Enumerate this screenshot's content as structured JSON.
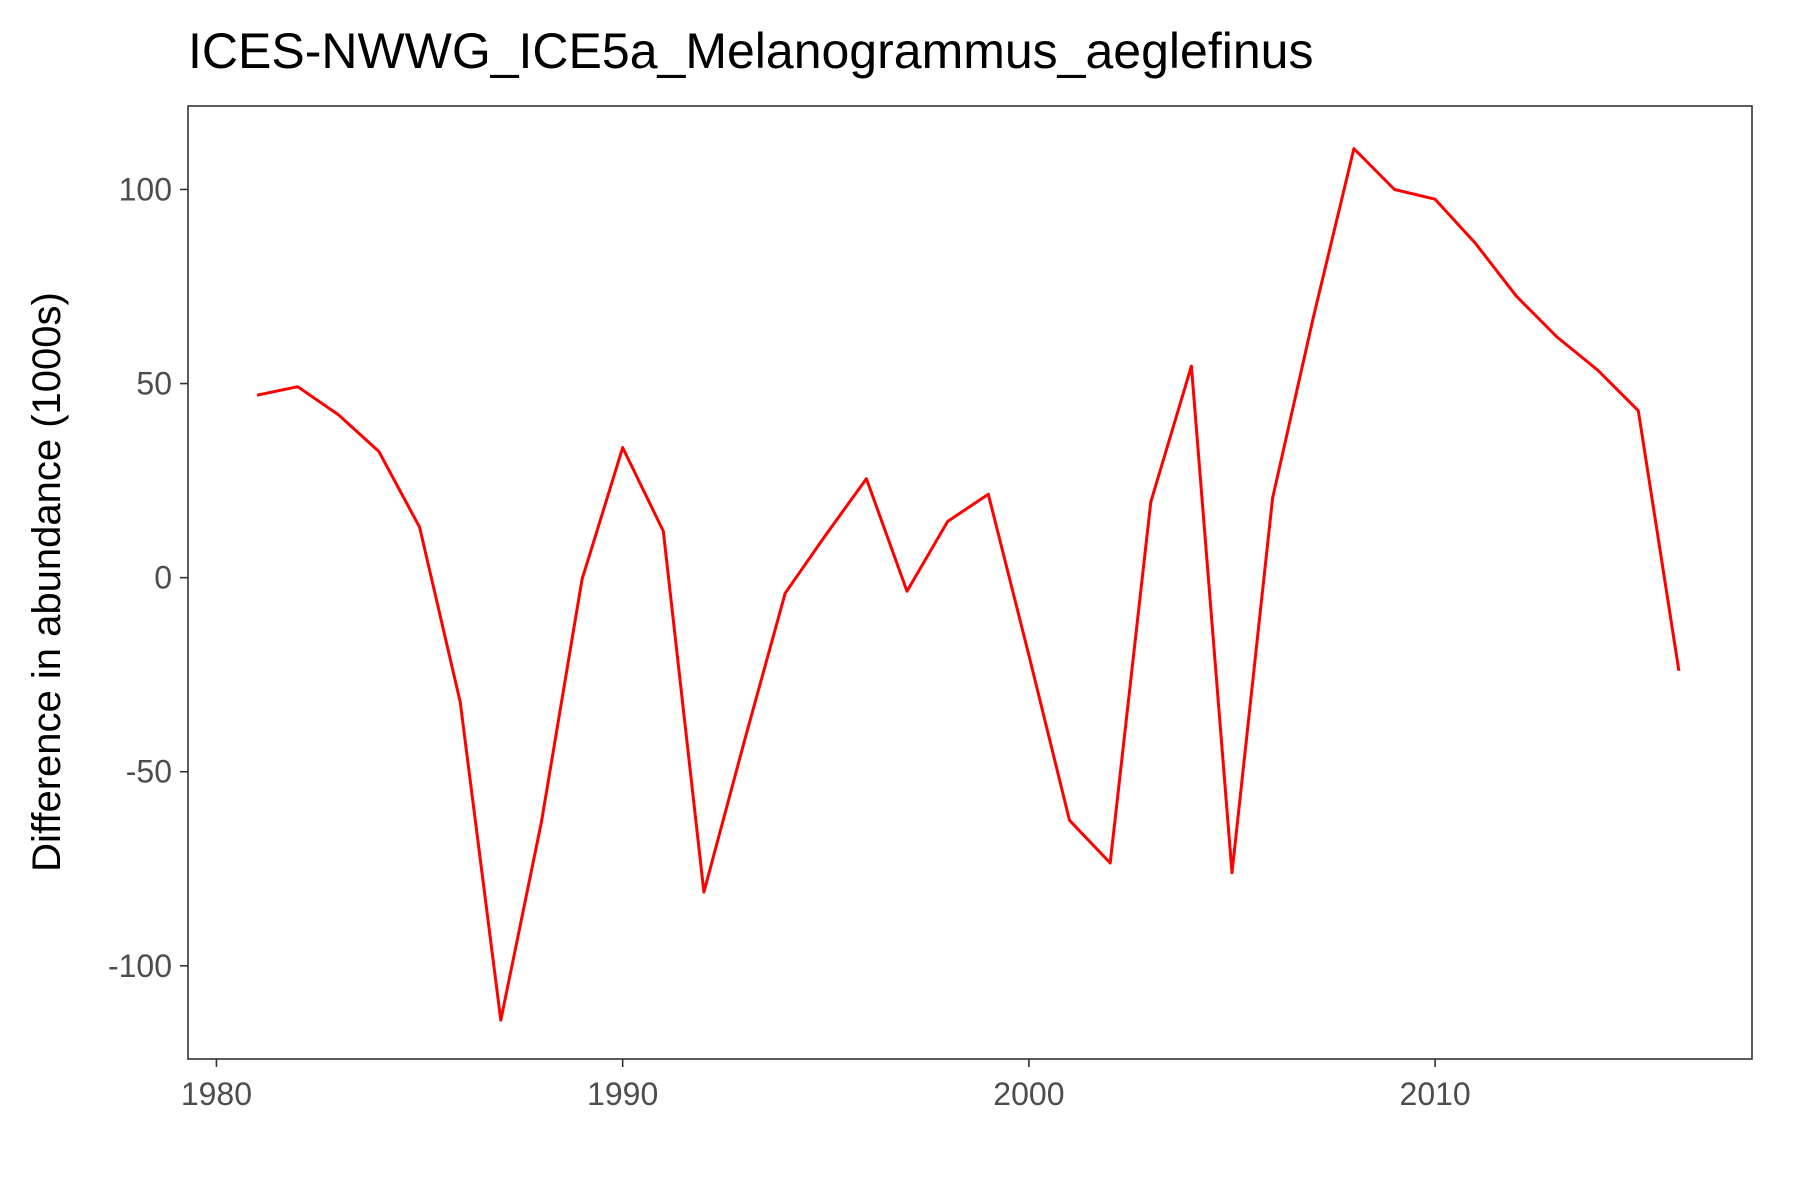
{
  "chart_data": {
    "type": "line",
    "title": "ICES-NWWG_ICE5a_Melanogrammus_aeglefinus",
    "xlabel": "",
    "ylabel": "Difference in abundance (1000s)",
    "xlim": [
      1979.3,
      2017.8
    ],
    "ylim": [
      -124,
      121.5
    ],
    "x_ticks": [
      1980,
      1990,
      2000,
      2010
    ],
    "y_ticks": [
      -100,
      -50,
      0,
      50,
      100
    ],
    "grid": false,
    "legend": "none",
    "series": [
      {
        "color": "#ff0000",
        "x": [
          1981,
          1982,
          1983,
          1984,
          1985,
          1986,
          1987,
          1988,
          1989,
          1990,
          1991,
          1992,
          1993,
          1994,
          1995,
          1996,
          1997,
          1998,
          1999,
          2000,
          2001,
          2002,
          2003,
          2004,
          2005,
          2006,
          2007,
          2008,
          2009,
          2010,
          2011,
          2012,
          2013,
          2014,
          2015,
          2016
        ],
        "y": [
          47,
          49.2,
          42,
          32.5,
          13,
          -32,
          -114,
          -63,
          -0.5,
          33.5,
          12,
          -81,
          -42,
          -4,
          11,
          25.5,
          -3.5,
          14.5,
          21.5,
          -20,
          -62.5,
          -73.5,
          19.5,
          54.5,
          -76,
          20.5,
          67,
          110.5,
          100,
          97.5,
          86,
          72.5,
          62,
          53.5,
          43,
          -24
        ]
      }
    ]
  }
}
